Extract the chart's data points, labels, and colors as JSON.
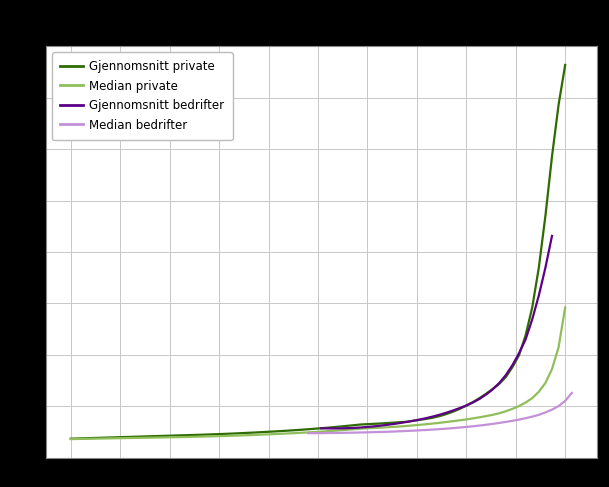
{
  "background_color": "#000000",
  "plot_bg_color": "#ffffff",
  "grid_color": "#c8c8c8",
  "line_width": 1.5,
  "colors": {
    "gjennomsnitt_private": "#2e6b00",
    "median_private": "#8fbe5a",
    "gjennomsnitt_bedrifter": "#5c0088",
    "median_bedrifter": "#c490d8"
  },
  "legend_labels": [
    "Gjennomsnitt private",
    "Median private",
    "Gjennomsnitt bedrifter",
    "Median bedrifter"
  ],
  "gjennomsnitt_private": [
    1.0,
    1.05,
    1.1,
    1.15,
    1.2,
    1.25,
    1.3,
    1.35,
    1.4,
    1.45,
    1.5,
    1.55,
    1.6,
    1.65,
    1.7,
    1.75,
    1.8,
    1.85,
    1.9,
    1.95,
    2.0,
    2.06,
    2.12,
    2.18,
    2.25,
    2.32,
    2.4,
    2.48,
    2.56,
    2.65,
    2.74,
    2.83,
    2.93,
    3.03,
    3.14,
    3.25,
    3.37,
    3.5,
    3.63,
    3.77,
    3.92,
    4.08,
    4.24,
    4.4,
    4.57,
    4.65,
    4.74,
    4.83,
    4.93,
    5.04,
    5.15,
    5.26,
    5.5,
    5.75,
    6.0,
    6.3,
    6.7,
    7.2,
    7.8,
    8.5,
    9.3,
    10.2,
    11.2,
    12.3,
    13.5,
    14.8,
    16.5,
    19.0,
    22.0,
    27.0,
    34.0,
    44.0,
    57.0,
    72.0,
    85.0,
    95.0
  ],
  "median_private": [
    0.9,
    0.93,
    0.96,
    0.99,
    1.02,
    1.05,
    1.08,
    1.11,
    1.14,
    1.17,
    1.2,
    1.23,
    1.26,
    1.29,
    1.32,
    1.35,
    1.38,
    1.41,
    1.45,
    1.49,
    1.53,
    1.57,
    1.62,
    1.67,
    1.72,
    1.77,
    1.83,
    1.89,
    1.95,
    2.02,
    2.09,
    2.16,
    2.24,
    2.32,
    2.4,
    2.49,
    2.58,
    2.68,
    2.78,
    2.89,
    3.0,
    3.12,
    3.25,
    3.38,
    3.52,
    3.6,
    3.68,
    3.77,
    3.87,
    3.97,
    4.08,
    4.2,
    4.35,
    4.5,
    4.65,
    4.82,
    5.0,
    5.2,
    5.4,
    5.62,
    5.85,
    6.1,
    6.38,
    6.67,
    7.0,
    7.4,
    7.9,
    8.5,
    9.2,
    10.1,
    11.2,
    12.8,
    15.0,
    18.5,
    24.0,
    34.0
  ],
  "gjennomsnitt_bedrifter": [
    null,
    null,
    null,
    null,
    null,
    null,
    null,
    null,
    null,
    null,
    null,
    null,
    null,
    null,
    null,
    null,
    null,
    null,
    null,
    null,
    null,
    null,
    null,
    null,
    null,
    null,
    null,
    null,
    null,
    null,
    null,
    null,
    null,
    null,
    null,
    null,
    null,
    null,
    3.6,
    3.58,
    3.58,
    3.6,
    3.65,
    3.72,
    3.82,
    3.95,
    4.1,
    4.28,
    4.48,
    4.7,
    4.95,
    5.22,
    5.52,
    5.84,
    6.2,
    6.6,
    7.05,
    7.55,
    8.1,
    8.7,
    9.35,
    10.1,
    11.0,
    12.1,
    13.4,
    15.0,
    17.0,
    19.5,
    22.5,
    26.0,
    31.0,
    37.0,
    44.0,
    52.0
  ],
  "median_bedrifter": [
    null,
    null,
    null,
    null,
    null,
    null,
    null,
    null,
    null,
    null,
    null,
    null,
    null,
    null,
    null,
    null,
    null,
    null,
    null,
    null,
    null,
    null,
    null,
    null,
    null,
    null,
    null,
    null,
    null,
    null,
    null,
    null,
    null,
    null,
    null,
    null,
    2.4,
    2.38,
    2.4,
    2.42,
    2.44,
    2.46,
    2.49,
    2.52,
    2.56,
    2.6,
    2.64,
    2.69,
    2.74,
    2.8,
    2.87,
    2.94,
    3.02,
    3.11,
    3.2,
    3.3,
    3.41,
    3.53,
    3.66,
    3.8,
    3.95,
    4.12,
    4.3,
    4.5,
    4.72,
    4.96,
    5.22,
    5.5,
    5.8,
    6.15,
    6.55,
    7.0,
    7.6,
    8.3,
    9.2,
    10.5,
    12.5
  ]
}
